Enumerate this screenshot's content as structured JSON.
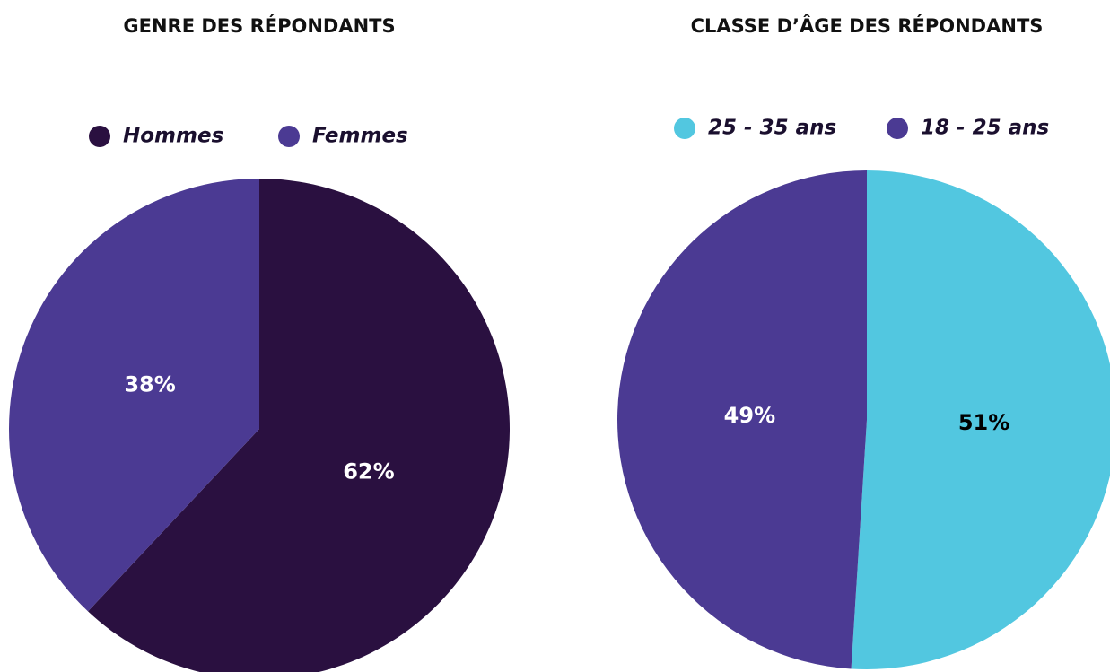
{
  "chart_data": [
    {
      "type": "pie",
      "title": "GENRE DES RÉPONDANTS",
      "categories": [
        "Hommes",
        "Femmes"
      ],
      "values": [
        62,
        38
      ],
      "value_labels": [
        "62%",
        "38%"
      ],
      "colors": [
        "#2a1040",
        "#4b3a93"
      ]
    },
    {
      "type": "pie",
      "title": "CLASSE D’ÂGE DES RÉPONDANTS",
      "categories": [
        "25 - 35 ans",
        "18 - 25 ans"
      ],
      "values": [
        51,
        49
      ],
      "value_labels": [
        "51%",
        "49%"
      ],
      "colors": [
        "#52c7e0",
        "#4b3a93"
      ]
    }
  ]
}
